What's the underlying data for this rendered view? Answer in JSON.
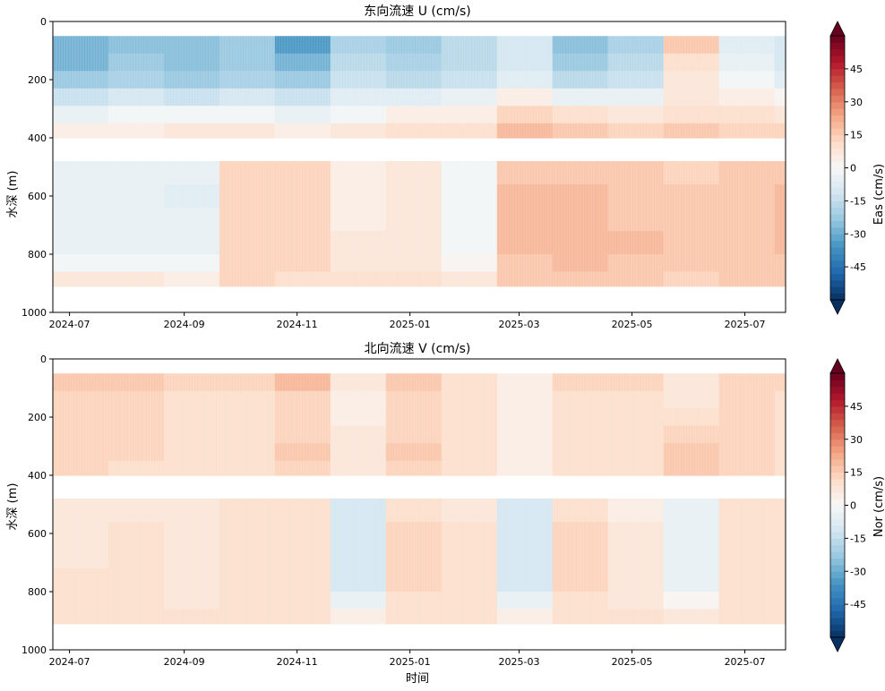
{
  "chart_data": [
    {
      "type": "heatmap",
      "title": "东向流速 U (cm/s)",
      "xlabel": "",
      "ylabel": "水深 (m)",
      "colorbar_label": "Eas (cm/s)",
      "xlim": [
        "2024-06-22",
        "2025-07-23"
      ],
      "ylim": [
        1000,
        0
      ],
      "y_inverted": true,
      "x_ticks": [
        "2024-07",
        "2024-09",
        "2024-11",
        "2025-01",
        "2025-03",
        "2025-05",
        "2025-07"
      ],
      "x_tick_dates": [
        "2024-07-01",
        "2024-09-01",
        "2024-11-01",
        "2025-01-01",
        "2025-03-01",
        "2025-05-01",
        "2025-07-01"
      ],
      "y_ticks": [
        0,
        200,
        400,
        600,
        800,
        1000
      ],
      "colorbar": {
        "range": [
          -60,
          60
        ],
        "step": 3,
        "ticks": [
          -45,
          -30,
          -15,
          0,
          15,
          30,
          45
        ],
        "extend": "both",
        "colormap": "RdBu_r"
      },
      "shallow_bins_depth_m": [
        50,
        400
      ],
      "deep_bins_depth_m": [
        480,
        910
      ],
      "gap_depth_m": [
        400,
        480
      ],
      "time_bins": [
        "2024-06-22",
        "2024-07-22",
        "2024-08-21",
        "2024-09-20",
        "2024-10-20",
        "2024-11-19",
        "2024-12-19",
        "2025-01-18",
        "2025-02-17",
        "2025-03-19",
        "2025-04-18",
        "2025-05-18",
        "2025-06-17",
        "2025-07-17"
      ],
      "depth_bins": [
        {
          "depth_m": [
            50,
            110
          ],
          "values": [
            -30,
            -25,
            -27,
            -24,
            -35,
            -20,
            -22,
            -17,
            -12,
            -25,
            -20,
            15,
            -8,
            -12
          ]
        },
        {
          "depth_m": [
            110,
            170
          ],
          "values": [
            -28,
            -24,
            -26,
            -22,
            -30,
            -18,
            -20,
            -16,
            -10,
            -22,
            -18,
            10,
            -6,
            -10
          ]
        },
        {
          "depth_m": [
            170,
            230
          ],
          "values": [
            -24,
            -20,
            -22,
            -19,
            -24,
            -15,
            -17,
            -14,
            -7,
            -18,
            -14,
            6,
            -3,
            -7
          ]
        },
        {
          "depth_m": [
            230,
            290
          ],
          "values": [
            -14,
            -11,
            -13,
            -11,
            -14,
            -9,
            -8,
            -6,
            4,
            -6,
            -4,
            6,
            3,
            0
          ]
        },
        {
          "depth_m": [
            290,
            350
          ],
          "values": [
            -5,
            -3,
            -2,
            -2,
            -4,
            -1,
            3,
            4,
            13,
            9,
            8,
            11,
            9,
            7
          ]
        },
        {
          "depth_m": [
            350,
            400
          ],
          "values": [
            3,
            5,
            6,
            6,
            4,
            6,
            9,
            9,
            18,
            16,
            14,
            15,
            13,
            12
          ]
        },
        {
          "depth_m": [
            480,
            560
          ],
          "values": [
            -4,
            -4,
            -6,
            12,
            12,
            5,
            7,
            -3,
            16,
            17,
            16,
            14,
            16,
            17
          ]
        },
        {
          "depth_m": [
            560,
            640
          ],
          "values": [
            -5,
            -5,
            -7,
            12,
            12,
            5,
            7,
            -3,
            18,
            19,
            17,
            15,
            17,
            18
          ]
        },
        {
          "depth_m": [
            640,
            720
          ],
          "values": [
            -5,
            -5,
            -6,
            12,
            12,
            5,
            7,
            -3,
            18,
            20,
            17,
            15,
            17,
            18
          ]
        },
        {
          "depth_m": [
            720,
            800
          ],
          "values": [
            -4,
            -4,
            -5,
            13,
            12,
            6,
            8,
            -2,
            18,
            20,
            18,
            15,
            17,
            18
          ]
        },
        {
          "depth_m": [
            800,
            860
          ],
          "values": [
            -2,
            -2,
            -3,
            13,
            12,
            7,
            8,
            0,
            17,
            19,
            17,
            15,
            16,
            17
          ]
        },
        {
          "depth_m": [
            860,
            910
          ],
          "values": [
            6,
            6,
            5,
            12,
            11,
            9,
            9,
            6,
            15,
            17,
            15,
            14,
            15,
            15
          ]
        }
      ]
    },
    {
      "type": "heatmap",
      "title": "北向流速 V (cm/s)",
      "xlabel": "时间",
      "ylabel": "水深 (m)",
      "colorbar_label": "Nor (cm/s)",
      "xlim": [
        "2024-06-22",
        "2025-07-23"
      ],
      "ylim": [
        1000,
        0
      ],
      "y_inverted": true,
      "x_ticks": [
        "2024-07",
        "2024-09",
        "2024-11",
        "2025-01",
        "2025-03",
        "2025-05",
        "2025-07"
      ],
      "x_tick_dates": [
        "2024-07-01",
        "2024-09-01",
        "2024-11-01",
        "2025-01-01",
        "2025-03-01",
        "2025-05-01",
        "2025-07-01"
      ],
      "y_ticks": [
        0,
        200,
        400,
        600,
        800,
        1000
      ],
      "colorbar": {
        "range": [
          -60,
          60
        ],
        "step": 3,
        "ticks": [
          -45,
          -30,
          -15,
          0,
          15,
          30,
          45
        ],
        "extend": "both",
        "colormap": "RdBu_r"
      },
      "shallow_bins_depth_m": [
        50,
        400
      ],
      "deep_bins_depth_m": [
        480,
        910
      ],
      "gap_depth_m": [
        400,
        480
      ],
      "time_bins": [
        "2024-06-22",
        "2024-07-22",
        "2024-08-21",
        "2024-09-20",
        "2024-10-20",
        "2024-11-19",
        "2024-12-19",
        "2025-01-18",
        "2025-02-17",
        "2025-03-19",
        "2025-04-18",
        "2025-05-18",
        "2025-06-17",
        "2025-07-17"
      ],
      "depth_bins": [
        {
          "depth_m": [
            50,
            110
          ],
          "values": [
            15,
            15,
            12,
            13,
            18,
            6,
            15,
            10,
            4,
            12,
            12,
            8,
            14,
            12
          ]
        },
        {
          "depth_m": [
            110,
            170
          ],
          "values": [
            14,
            13,
            11,
            11,
            14,
            5,
            13,
            9,
            3,
            11,
            11,
            6,
            13,
            11
          ]
        },
        {
          "depth_m": [
            170,
            230
          ],
          "values": [
            13,
            12,
            10,
            11,
            13,
            5,
            13,
            9,
            3,
            11,
            10,
            9,
            13,
            10
          ]
        },
        {
          "depth_m": [
            230,
            290
          ],
          "values": [
            13,
            12,
            10,
            10,
            14,
            6,
            14,
            9,
            4,
            10,
            10,
            12,
            13,
            10
          ]
        },
        {
          "depth_m": [
            290,
            350
          ],
          "values": [
            13,
            12,
            10,
            10,
            15,
            6,
            15,
            10,
            5,
            10,
            10,
            15,
            13,
            10
          ]
        },
        {
          "depth_m": [
            350,
            400
          ],
          "values": [
            12,
            11,
            9,
            10,
            14,
            6,
            14,
            9,
            5,
            9,
            9,
            16,
            12,
            9
          ]
        },
        {
          "depth_m": [
            480,
            560
          ],
          "values": [
            7,
            8,
            6,
            10,
            9,
            -10,
            11,
            8,
            -10,
            11,
            5,
            -5,
            10,
            9
          ]
        },
        {
          "depth_m": [
            560,
            640
          ],
          "values": [
            8,
            9,
            7,
            11,
            10,
            -12,
            12,
            9,
            -12,
            12,
            6,
            -6,
            11,
            10
          ]
        },
        {
          "depth_m": [
            640,
            720
          ],
          "values": [
            8,
            9,
            7,
            11,
            10,
            -12,
            12,
            9,
            -12,
            12,
            6,
            -6,
            11,
            10
          ]
        },
        {
          "depth_m": [
            720,
            800
          ],
          "values": [
            9,
            9,
            7,
            11,
            10,
            -10,
            12,
            9,
            -10,
            12,
            7,
            -4,
            11,
            10
          ]
        },
        {
          "depth_m": [
            800,
            860
          ],
          "values": [
            10,
            10,
            8,
            11,
            10,
            -6,
            11,
            10,
            -5,
            11,
            8,
            2,
            11,
            10
          ]
        },
        {
          "depth_m": [
            860,
            910
          ],
          "values": [
            10,
            10,
            9,
            10,
            10,
            4,
            10,
            10,
            5,
            10,
            9,
            8,
            10,
            10
          ]
        }
      ]
    }
  ]
}
